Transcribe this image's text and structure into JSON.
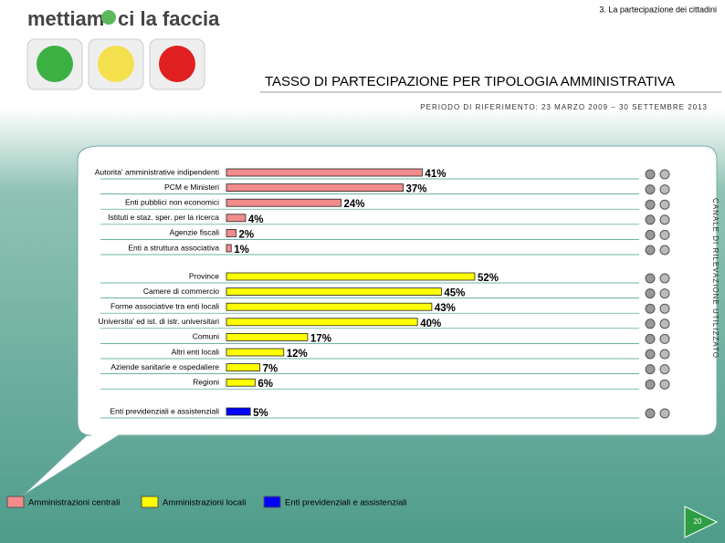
{
  "header": {
    "section": "3. La partecipazione dei cittadini",
    "logo": [
      "mettiam",
      "ci la faccia"
    ]
  },
  "chart_data": {
    "type": "bar",
    "orientation": "horizontal",
    "title": "TASSO DI PARTECIPAZIONE PER TIPOLOGIA AMMINISTRATIVA",
    "subtitle": "PERIODO DI RIFERIMENTO: 23 MARZO 2009 – 30 SETTEMBRE 2013",
    "side_label": "CANALE DI RILEVAZIONE UTILIZZATO",
    "series": [
      {
        "name": "Amministrazioni centrali",
        "color": "#f28b8b",
        "categories": [
          "Autorita' amministrative indipendenti",
          "PCM e Ministeri",
          "Enti pubblici non economici",
          "Istituti e staz. sper. per la ricerca",
          "Agenzie fiscali",
          "Enti a struttura associativa"
        ],
        "values": [
          41,
          37,
          24,
          4,
          2,
          1
        ],
        "value_labels": [
          "41%",
          "37%",
          "24%",
          "4%",
          "2%",
          "1%"
        ]
      },
      {
        "name": "Amministrazioni locali",
        "color": "#ffff00",
        "categories": [
          "Province",
          "Camere di commercio",
          "Forme associative tra enti locali",
          "Universita' ed ist. di istr. universitari",
          "Comuni",
          "Altri enti locali",
          "Aziende sanitarie e ospedaliere",
          "Regioni"
        ],
        "values": [
          52,
          45,
          43,
          40,
          17,
          12,
          7,
          6
        ],
        "value_labels": [
          "52%",
          "45%",
          "43%",
          "40%",
          "17%",
          "12%",
          "7%",
          "6%"
        ]
      },
      {
        "name": "Enti previdenziali e assistenziali",
        "color": "#0000ff",
        "categories": [
          "Enti previdenziali e assistenziali"
        ],
        "values": [
          5
        ],
        "value_labels": [
          "5%"
        ]
      }
    ]
  },
  "page_number": "20"
}
